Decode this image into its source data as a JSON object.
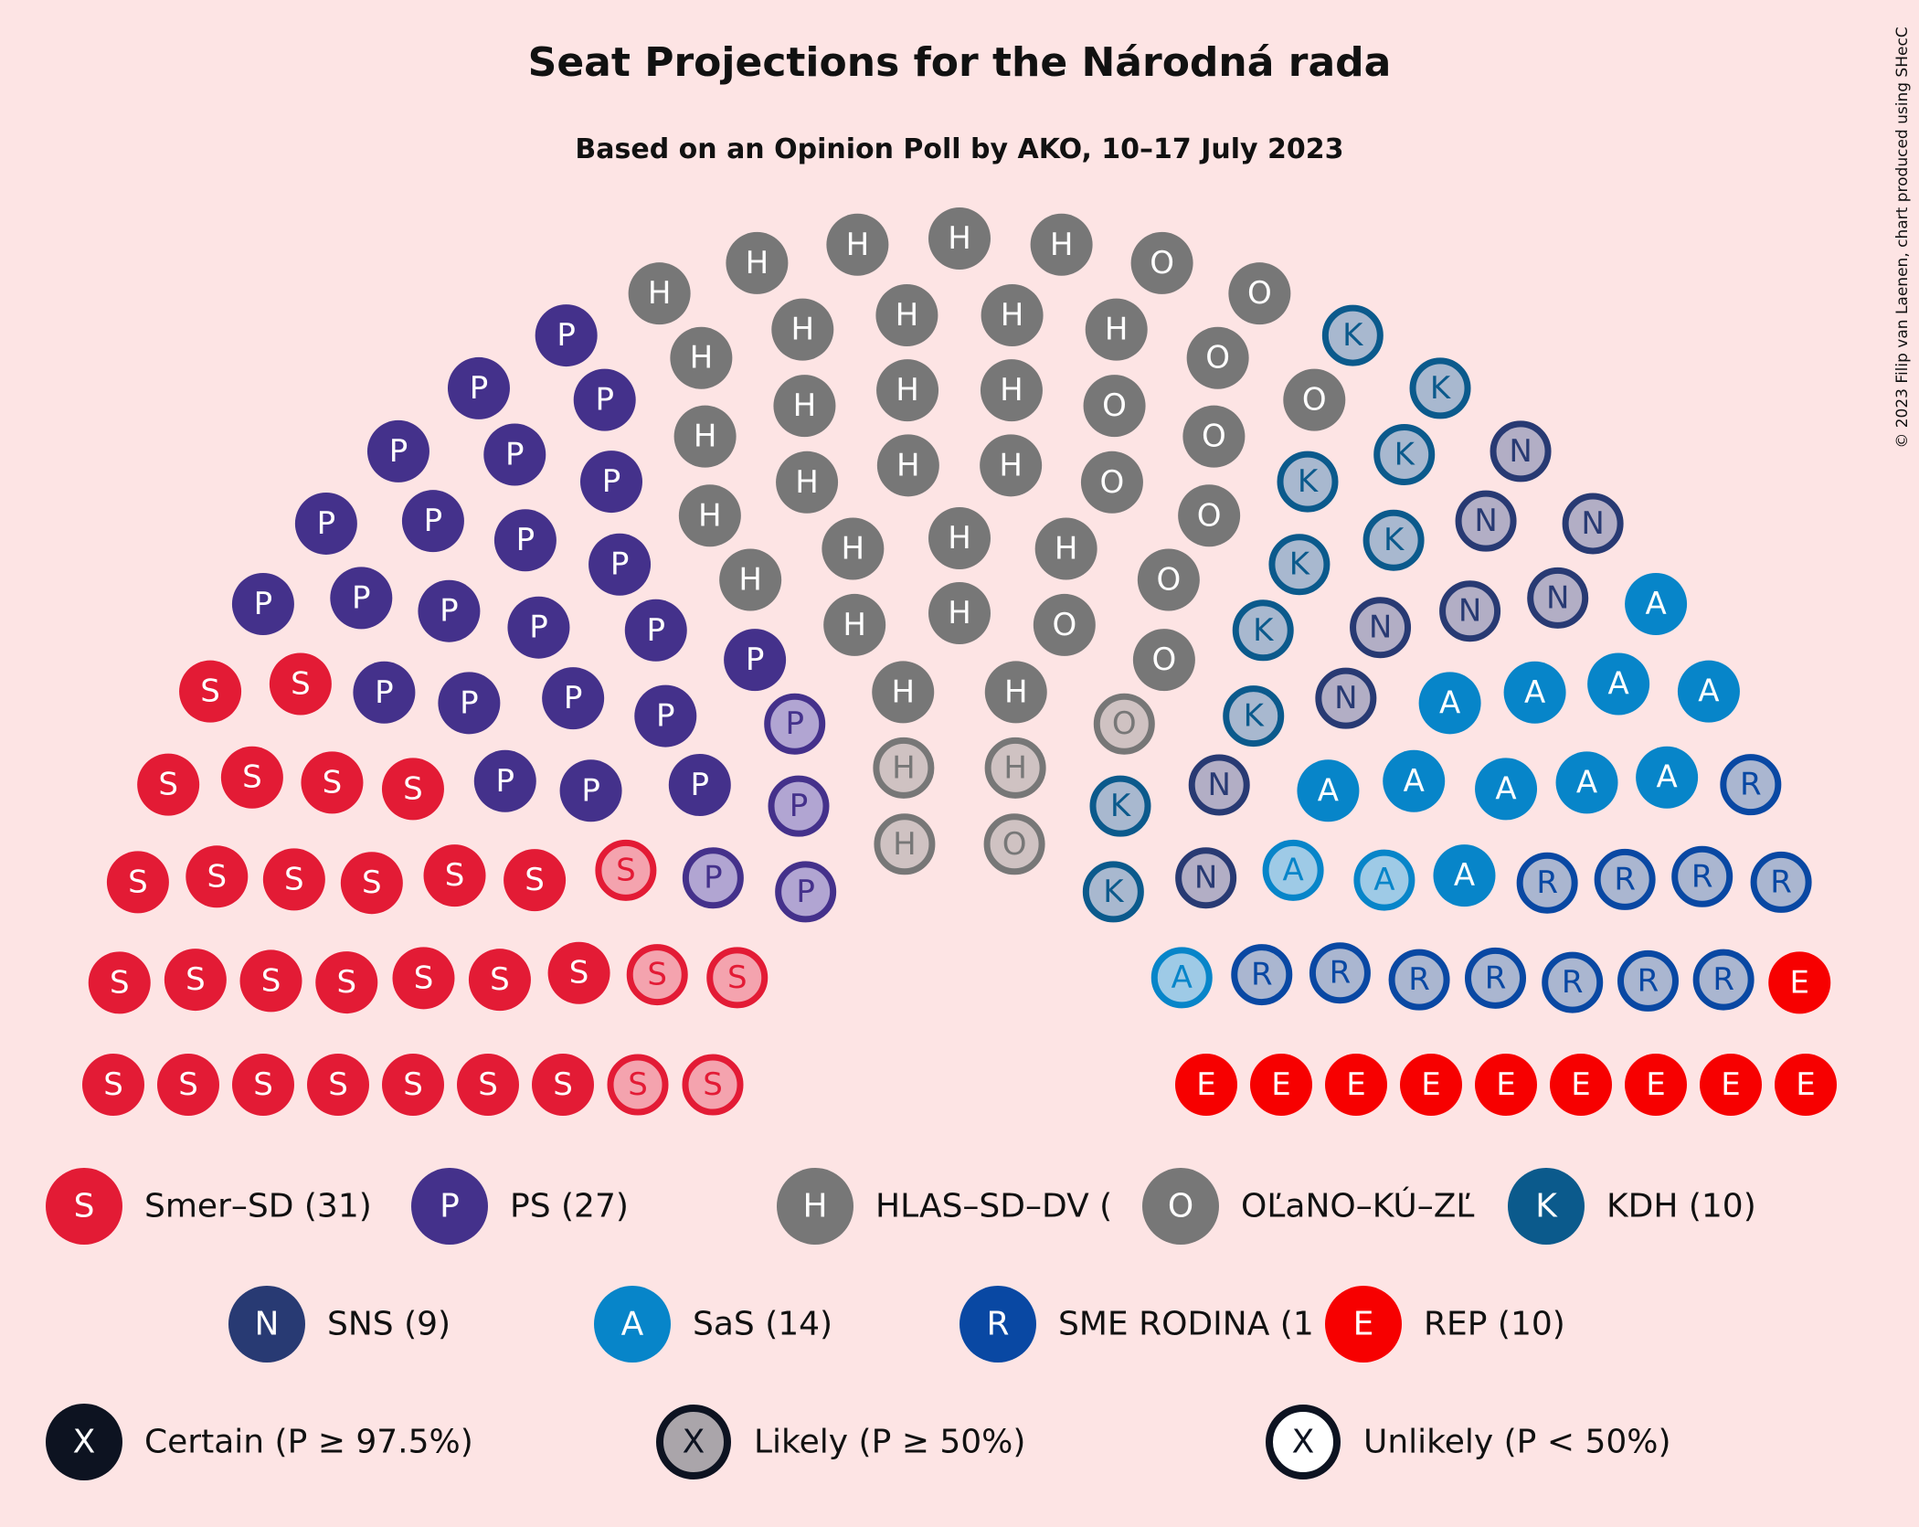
{
  "title": "Seat Projections for the Národná rada",
  "subtitle": "Based on an Opinion Poll by AKO, 10–17 July 2023",
  "credit": "© 2023 Filip van Laenen, chart produced using SHecC",
  "chart_data": {
    "type": "parliament",
    "parties": [
      {
        "key": "S",
        "name": "Smer–SD",
        "legend_label": "Smer–SD (31)",
        "seats": 31,
        "likely": 5,
        "color": "#e31b35",
        "light": "#f4a3ae"
      },
      {
        "key": "P",
        "name": "PS",
        "legend_label": "PS (27)",
        "seats": 27,
        "likely": 4,
        "color": "#44318b",
        "light": "#b1a5d2"
      },
      {
        "key": "H",
        "name": "HLAS–SD–DV",
        "legend_label": "HLAS–SD–DV (",
        "seats": 29,
        "likely": 3,
        "color": "#777777",
        "light": "#cfc2c2"
      },
      {
        "key": "O",
        "name": "OĽaNO–KÚ–ZĽ",
        "legend_label": "OĽaNO–KÚ–ZĽ",
        "seats": 13,
        "likely": 2,
        "color": "#777777",
        "light": "#cfc2c2"
      },
      {
        "key": "K",
        "name": "KDH",
        "legend_label": "KDH (10)",
        "seats": 10,
        "likely": 10,
        "color": "#0b5a8c",
        "light": "#a8b8cf"
      },
      {
        "key": "N",
        "name": "SNS",
        "legend_label": "SNS (9)",
        "seats": 9,
        "likely": 9,
        "color": "#283a73",
        "light": "#b2aec5"
      },
      {
        "key": "A",
        "name": "SaS",
        "legend_label": "SaS (14)",
        "seats": 14,
        "likely": 3,
        "color": "#0785c9",
        "light": "#9ecae6"
      },
      {
        "key": "R",
        "name": "SME RODINA",
        "legend_label": "SME RODINA (1",
        "seats": 12,
        "likely": 12,
        "color": "#0948a3",
        "light": "#aab6d0"
      },
      {
        "key": "E",
        "name": "REP",
        "legend_label": "REP (10)",
        "seats": 10,
        "likely": 0,
        "color": "#f70000",
        "light": "#fb8080"
      }
    ],
    "certainty_legend": [
      {
        "key": "X",
        "label": "Certain (P ≥ 97.5%)",
        "style": "certain"
      },
      {
        "key": "X",
        "label": "Likely (P ≥ 50%)",
        "style": "likely"
      },
      {
        "key": "X",
        "label": "Unlikely (P < 50%)",
        "style": "unlikely"
      }
    ]
  }
}
